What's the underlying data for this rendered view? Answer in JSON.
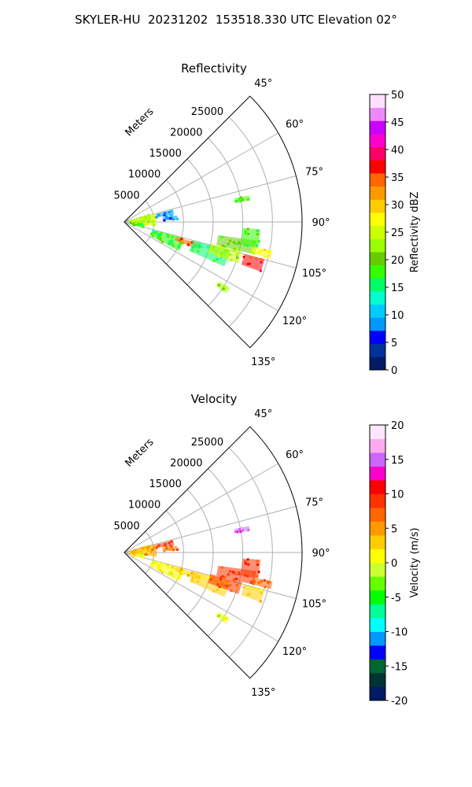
{
  "figure": {
    "title": "SKYLER-HU  20231202  153518.330 UTC Elevation 02°"
  },
  "chart_data": [
    {
      "type": "heatmap",
      "subtype": "polar-sector",
      "title": "Reflectivity",
      "radial_label": "Meters",
      "radial_ticks": [
        5000,
        10000,
        15000,
        20000,
        25000
      ],
      "r_max": 30000,
      "theta_range_deg": [
        45,
        135
      ],
      "theta_ticks": [
        45,
        60,
        75,
        90,
        105,
        120,
        135
      ],
      "theta_tick_labels": [
        "45°",
        "60°",
        "75°",
        "90°",
        "105°",
        "120°",
        "135°"
      ],
      "grid": true,
      "colorbar": {
        "label": "Reflectivity dBZ",
        "range": [
          0,
          50
        ],
        "ticks": [
          0,
          5,
          10,
          15,
          20,
          25,
          30,
          35,
          40,
          45,
          50
        ],
        "colors": [
          "#001a66",
          "#003399",
          "#0000ff",
          "#0099ff",
          "#00ccff",
          "#00ffcc",
          "#00ff66",
          "#33ff00",
          "#66cc00",
          "#99ff00",
          "#ccff00",
          "#ffff00",
          "#ffcc00",
          "#ff9900",
          "#ff6600",
          "#ff0000",
          "#ff0066",
          "#ff00cc",
          "#cc00ff",
          "#ee88ff",
          "#ffe0ff"
        ]
      },
      "echoes": [
        {
          "r": [
            1000,
            5500
          ],
          "theta": [
            75,
            97
          ],
          "value": 24
        },
        {
          "r": [
            1000,
            3500
          ],
          "theta": [
            97,
            108
          ],
          "value": 18
        },
        {
          "r": [
            5500,
            8500
          ],
          "theta": [
            76,
            82
          ],
          "value": 8
        },
        {
          "r": [
            6500,
            9000
          ],
          "theta": [
            83,
            88
          ],
          "value": 9
        },
        {
          "r": [
            5000,
            10500
          ],
          "theta": [
            105,
            118
          ],
          "value": 17
        },
        {
          "r": [
            9000,
            13000
          ],
          "theta": [
            106,
            110
          ],
          "value": 34
        },
        {
          "r": [
            12000,
            18500
          ],
          "theta": [
            105,
            114
          ],
          "value": 16
        },
        {
          "r": [
            16000,
            22500
          ],
          "theta": [
            98,
            104
          ],
          "value": 20
        },
        {
          "r": [
            15000,
            20500
          ],
          "theta": [
            104,
            110
          ],
          "value": 24
        },
        {
          "r": [
            20000,
            23000
          ],
          "theta": [
            93,
            101
          ],
          "value": 17
        },
        {
          "r": [
            22000,
            25500
          ],
          "theta": [
            101,
            104
          ],
          "value": 28
        },
        {
          "r": [
            21000,
            24500
          ],
          "theta": [
            105,
            110
          ],
          "value": 36
        },
        {
          "r": [
            19000,
            21500
          ],
          "theta": [
            78,
            80
          ],
          "value": 19
        },
        {
          "r": [
            19000,
            21000
          ],
          "theta": [
            122,
            125
          ],
          "value": 23
        }
      ]
    },
    {
      "type": "heatmap",
      "subtype": "polar-sector",
      "title": "Velocity",
      "radial_label": "Meters",
      "radial_ticks": [
        5000,
        10000,
        15000,
        20000,
        25000
      ],
      "r_max": 30000,
      "theta_range_deg": [
        45,
        135
      ],
      "theta_ticks": [
        45,
        60,
        75,
        90,
        105,
        120,
        135
      ],
      "theta_tick_labels": [
        "45°",
        "60°",
        "75°",
        "90°",
        "105°",
        "120°",
        "135°"
      ],
      "grid": true,
      "colorbar": {
        "label": "Velocity (m/s)",
        "range": [
          -20,
          20
        ],
        "ticks": [
          -20,
          -15,
          -10,
          -5,
          0,
          5,
          10,
          15,
          20
        ],
        "colors": [
          "#001a66",
          "#003333",
          "#006633",
          "#0000ff",
          "#0099ff",
          "#00ffff",
          "#00ff99",
          "#00ff00",
          "#66ff00",
          "#ccff33",
          "#ffff00",
          "#ffcc00",
          "#ff9900",
          "#ff6600",
          "#ff3300",
          "#ff0000",
          "#ff00cc",
          "#cc66ff",
          "#ffaaee",
          "#ffe6ff"
        ]
      },
      "echoes": [
        {
          "r": [
            1000,
            5500
          ],
          "theta": [
            75,
            97
          ],
          "value": 4
        },
        {
          "r": [
            1000,
            3500
          ],
          "theta": [
            97,
            108
          ],
          "value": 1
        },
        {
          "r": [
            5500,
            8500
          ],
          "theta": [
            76,
            82
          ],
          "value": 8
        },
        {
          "r": [
            6500,
            9000
          ],
          "theta": [
            83,
            88
          ],
          "value": 7
        },
        {
          "r": [
            5000,
            10500
          ],
          "theta": [
            105,
            118
          ],
          "value": 1
        },
        {
          "r": [
            9000,
            13000
          ],
          "theta": [
            106,
            110
          ],
          "value": 2
        },
        {
          "r": [
            12000,
            18500
          ],
          "theta": [
            105,
            114
          ],
          "value": 2
        },
        {
          "r": [
            16000,
            22500
          ],
          "theta": [
            98,
            104
          ],
          "value": 9
        },
        {
          "r": [
            15000,
            20500
          ],
          "theta": [
            104,
            110
          ],
          "value": 8
        },
        {
          "r": [
            20000,
            23000
          ],
          "theta": [
            93,
            101
          ],
          "value": 9
        },
        {
          "r": [
            22000,
            25500
          ],
          "theta": [
            101,
            104
          ],
          "value": 7
        },
        {
          "r": [
            21000,
            24500
          ],
          "theta": [
            105,
            110
          ],
          "value": 2
        },
        {
          "r": [
            19000,
            21500
          ],
          "theta": [
            78,
            80
          ],
          "value": 15
        },
        {
          "r": [
            19000,
            21000
          ],
          "theta": [
            122,
            125
          ],
          "value": 0
        }
      ]
    }
  ]
}
